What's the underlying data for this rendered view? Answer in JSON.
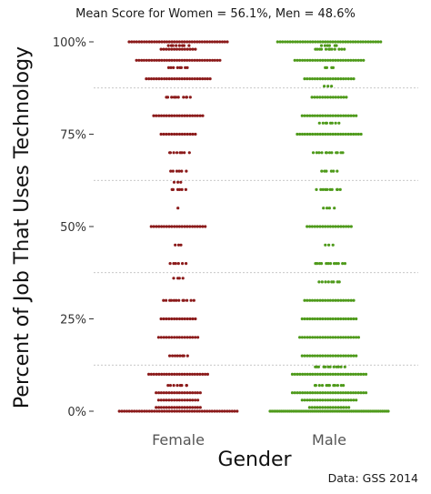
{
  "chart_data": {
    "type": "scatter",
    "subtitle": "Mean Score for Women = 56.1%, Men = 48.6%",
    "xlabel": "Gender",
    "ylabel": "Percent of Job That Uses Technology",
    "source": "Data: GSS 2014",
    "categories": [
      "Female",
      "Male"
    ],
    "ylim": [
      0,
      100
    ],
    "yticks": [
      0,
      25,
      50,
      75,
      100
    ],
    "ytick_labels": [
      "0%",
      "25%",
      "50%",
      "75%",
      "100%"
    ],
    "minor_gridlines": [
      12.5,
      37.5,
      62.5,
      87.5
    ],
    "series": [
      {
        "name": "Female",
        "color": "#8b1a1a",
        "mean": 56.1,
        "levels": [
          {
            "y": 100,
            "n": 40
          },
          {
            "y": 99,
            "n": 8
          },
          {
            "y": 98,
            "n": 14
          },
          {
            "y": 95,
            "n": 34
          },
          {
            "y": 93,
            "n": 8
          },
          {
            "y": 90,
            "n": 26
          },
          {
            "y": 85,
            "n": 10
          },
          {
            "y": 80,
            "n": 20
          },
          {
            "y": 75,
            "n": 14
          },
          {
            "y": 70,
            "n": 8
          },
          {
            "y": 65,
            "n": 6
          },
          {
            "y": 62,
            "n": 3
          },
          {
            "y": 60,
            "n": 6
          },
          {
            "y": 55,
            "n": 1
          },
          {
            "y": 50,
            "n": 22
          },
          {
            "y": 45,
            "n": 3
          },
          {
            "y": 40,
            "n": 6
          },
          {
            "y": 36,
            "n": 4
          },
          {
            "y": 30,
            "n": 12
          },
          {
            "y": 25,
            "n": 14
          },
          {
            "y": 20,
            "n": 16
          },
          {
            "y": 15,
            "n": 8
          },
          {
            "y": 10,
            "n": 24
          },
          {
            "y": 7,
            "n": 8
          },
          {
            "y": 5,
            "n": 18
          },
          {
            "y": 3,
            "n": 16
          },
          {
            "y": 1,
            "n": 18
          },
          {
            "y": 0,
            "n": 48
          }
        ]
      },
      {
        "name": "Male",
        "color": "#4e9a1a",
        "mean": 48.6,
        "levels": [
          {
            "y": 100,
            "n": 42
          },
          {
            "y": 99,
            "n": 6
          },
          {
            "y": 98,
            "n": 12
          },
          {
            "y": 95,
            "n": 28
          },
          {
            "y": 93,
            "n": 4
          },
          {
            "y": 90,
            "n": 20
          },
          {
            "y": 88,
            "n": 3
          },
          {
            "y": 85,
            "n": 14
          },
          {
            "y": 80,
            "n": 22
          },
          {
            "y": 78,
            "n": 8
          },
          {
            "y": 75,
            "n": 26
          },
          {
            "y": 70,
            "n": 12
          },
          {
            "y": 65,
            "n": 6
          },
          {
            "y": 60,
            "n": 10
          },
          {
            "y": 55,
            "n": 4
          },
          {
            "y": 50,
            "n": 18
          },
          {
            "y": 45,
            "n": 3
          },
          {
            "y": 40,
            "n": 12
          },
          {
            "y": 35,
            "n": 8
          },
          {
            "y": 30,
            "n": 20
          },
          {
            "y": 25,
            "n": 22
          },
          {
            "y": 20,
            "n": 24
          },
          {
            "y": 15,
            "n": 22
          },
          {
            "y": 12,
            "n": 12
          },
          {
            "y": 10,
            "n": 30
          },
          {
            "y": 7,
            "n": 12
          },
          {
            "y": 5,
            "n": 30
          },
          {
            "y": 3,
            "n": 22
          },
          {
            "y": 1,
            "n": 16
          },
          {
            "y": 0,
            "n": 62
          }
        ]
      }
    ],
    "grid": true
  }
}
